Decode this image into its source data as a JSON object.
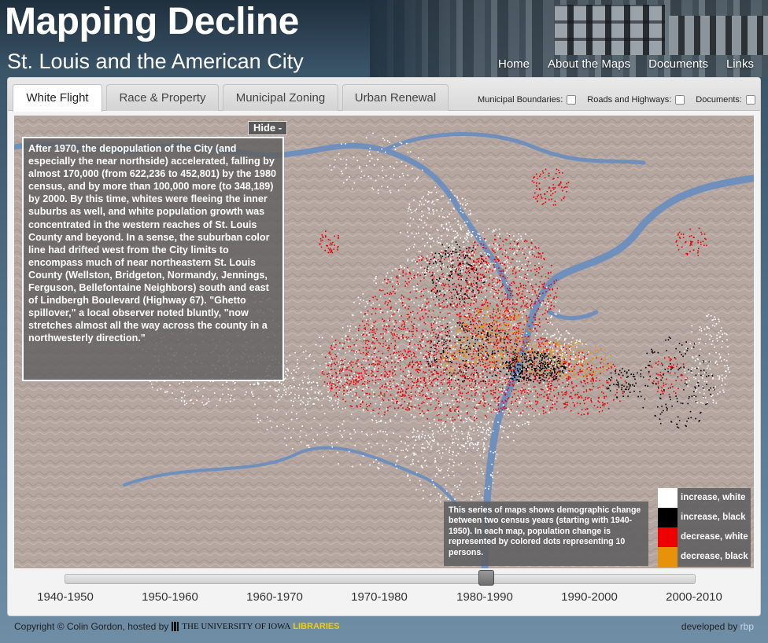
{
  "header": {
    "title": "Mapping Decline",
    "subtitle": "St. Louis and the American City",
    "nav": [
      "Home",
      "About the Maps",
      "Documents",
      "Links"
    ]
  },
  "tabs": [
    "White Flight",
    "Race & Property",
    "Municipal Zoning",
    "Urban Renewal"
  ],
  "active_tab": "White Flight",
  "layers": {
    "municipal": "Municipal Boundaries:",
    "roads": "Roads and Highways:",
    "documents": "Documents:"
  },
  "map": {
    "hide_label": "Hide -",
    "info_text": "After 1970, the depopulation of the City (and especially the near northside) accelerated, falling by almost 170,000 (from 622,236 to 452,801) by the 1980 census, and by more than 100,000 more (to 348,189) by 2000. By this time, whites were fleeing the inner suburbs as well, and white population growth was concentrated in the western reaches of St. Louis County and beyond. In a sense, the suburban color line had drifted west from the City limits to encompass much of near northeastern St. Louis County (Wellston, Bridgeton, Normandy, Jennings, Ferguson, Bellefontaine Neighbors) south and east of Lindbergh Boulevard (Highway 67). \"Ghetto spillover,\" a local observer noted bluntly, \"now stretches almost all the way across the county in a northwesterly direction.\"",
    "note_text": "This series of maps shows demographic change between two census years (starting with 1940-1950). In each map, population change is represented by colored dots representing 10 persons.",
    "legend": [
      {
        "label": "increase, white",
        "color": "#ffffff"
      },
      {
        "label": "increase, black",
        "color": "#000000"
      },
      {
        "label": "decrease, white",
        "color": "#ee0000"
      },
      {
        "label": "decrease, black",
        "color": "#e8920c"
      }
    ]
  },
  "slider": {
    "decades": [
      "1940-1950",
      "1950-1960",
      "1960-1970",
      "1970-1980",
      "1980-1990",
      "1990-2000",
      "2000-2010"
    ],
    "selected": "1980-1990"
  },
  "footer": {
    "copyright": "Copyright © Colin Gordon, hosted by",
    "university": "THE UNIVERSITY OF IOWA",
    "libraries": "LIBRARIES",
    "developed_by": "developed by",
    "developer": "rbp"
  },
  "colors": {
    "river": "#6f8fbd",
    "terrain": "#b7a8a2"
  }
}
